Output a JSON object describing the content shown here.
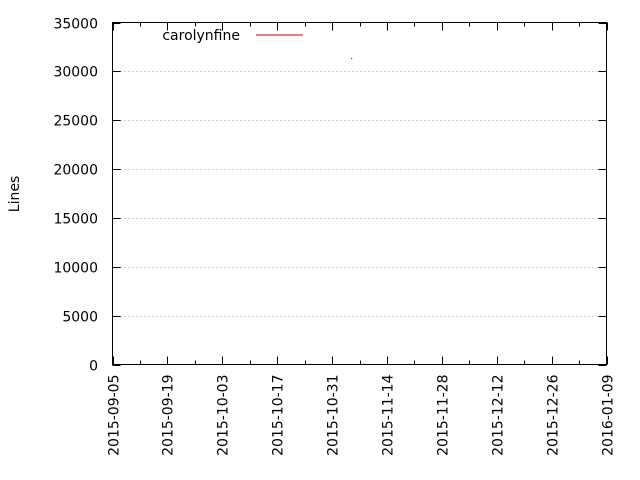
{
  "chart_data": {
    "type": "line",
    "title": "",
    "xlabel": "",
    "ylabel": "Lines",
    "x_type": "date",
    "xlim": [
      "2015-09-05",
      "2016-01-09"
    ],
    "ylim": [
      0,
      35000
    ],
    "x_ticks": [
      "2015-09-05",
      "2015-09-19",
      "2015-10-03",
      "2015-10-17",
      "2015-10-31",
      "2015-11-14",
      "2015-11-28",
      "2015-12-12",
      "2015-12-26",
      "2016-01-09"
    ],
    "y_ticks": [
      "0",
      "5000",
      "10000",
      "15000",
      "20000",
      "25000",
      "30000",
      "35000"
    ],
    "grid": true,
    "legend_position": "top-left",
    "series": [
      {
        "name": "carolynfine",
        "color": "#c00000",
        "points": [
          {
            "x": "2015-11-05",
            "y": 31300
          }
        ]
      }
    ]
  }
}
